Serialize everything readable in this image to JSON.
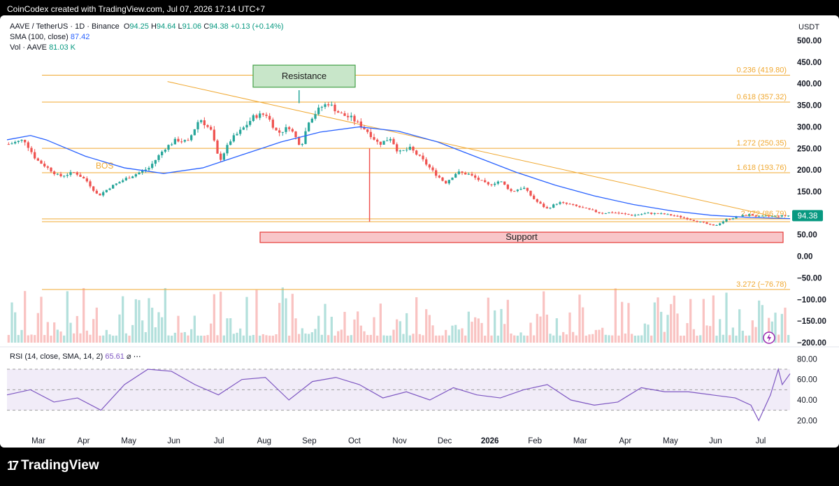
{
  "header": {
    "attribution": "CoinCodex created with TradingView.com, Jul 07, 2026 17:14 UTC+7"
  },
  "legend": {
    "symbol": "AAVE / TetherUS · 1D · Binance",
    "open": "94.25",
    "high": "94.64",
    "low": "91.06",
    "close": "94.38",
    "change": "+0.13 (+0.14%)",
    "sma_label": "SMA (100, close)",
    "sma_value": "87.42",
    "vol_label": "Vol · AAVE",
    "vol_value": "81.03 K",
    "rsi_label": "RSI (14, close, SMA, 14, 2)",
    "rsi_value": "65.61"
  },
  "footer": {
    "brand": "TradingView"
  },
  "colors": {
    "up": "#26a69a",
    "down": "#ef5350",
    "sma": "#2962ff",
    "level": "#f0a830",
    "rsi": "#7e57c2",
    "support_fill": "#f8c6c9",
    "support_stroke": "#e53935",
    "resistance_fill": "#c8e6c9",
    "resistance_stroke": "#43a047"
  },
  "chart_data": {
    "type": "candlestick",
    "currency": "USDT",
    "price_axis": {
      "ticks": [
        "500.00",
        "450.00",
        "400.00",
        "350.00",
        "300.00",
        "250.00",
        "200.00",
        "150.00",
        "100.00",
        "50.00",
        "0.00",
        "−50.00",
        "−100.00",
        "−150.00",
        "−200.00"
      ],
      "range": [
        -200,
        500
      ]
    },
    "rsi_axis": {
      "ticks": [
        "80.00",
        "60.00",
        "40.00",
        "20.00"
      ],
      "range": [
        10,
        85
      ],
      "bands": [
        30,
        50,
        70
      ]
    },
    "time_axis": {
      "ticks": [
        "Mar",
        "Apr",
        "May",
        "Jun",
        "Jul",
        "Aug",
        "Sep",
        "Oct",
        "Nov",
        "Dec",
        "2026",
        "Feb",
        "Mar",
        "Apr",
        "May",
        "Jun",
        "Jul"
      ]
    },
    "last_price": "94.38",
    "levels": [
      {
        "label": "0.236 (419.80)",
        "value": 419.8
      },
      {
        "label": "0.618 (357.32)",
        "value": 357.32
      },
      {
        "label": "1.272 (250.35)",
        "value": 250.35
      },
      {
        "label": "1.618 (193.76)",
        "value": 193.76
      },
      {
        "label": "2.272 (86.79)",
        "value": 86.79
      },
      {
        "label": "3.272 (−76.78)",
        "value": -76.78
      }
    ],
    "annotations": {
      "resistance": "Resistance",
      "support": "Support",
      "bos": "BOS"
    },
    "support_zone": [
      32,
      56
    ],
    "resistance_zone": [
      392,
      443
    ],
    "trendline": [
      [
        0.205,
        405
      ],
      [
        0.99,
        88
      ]
    ],
    "price_path": [
      [
        0.0,
        260
      ],
      [
        0.02,
        270
      ],
      [
        0.035,
        225
      ],
      [
        0.05,
        205
      ],
      [
        0.065,
        185
      ],
      [
        0.085,
        195
      ],
      [
        0.1,
        175
      ],
      [
        0.115,
        140
      ],
      [
        0.13,
        160
      ],
      [
        0.15,
        180
      ],
      [
        0.165,
        192
      ],
      [
        0.18,
        205
      ],
      [
        0.2,
        250
      ],
      [
        0.215,
        270
      ],
      [
        0.23,
        265
      ],
      [
        0.245,
        320
      ],
      [
        0.26,
        290
      ],
      [
        0.27,
        220
      ],
      [
        0.285,
        270
      ],
      [
        0.3,
        295
      ],
      [
        0.315,
        325
      ],
      [
        0.33,
        330
      ],
      [
        0.345,
        285
      ],
      [
        0.36,
        300
      ],
      [
        0.375,
        255
      ],
      [
        0.385,
        315
      ],
      [
        0.4,
        345
      ],
      [
        0.41,
        355
      ],
      [
        0.425,
        330
      ],
      [
        0.44,
        320
      ],
      [
        0.46,
        290
      ],
      [
        0.475,
        260
      ],
      [
        0.49,
        275
      ],
      [
        0.5,
        240
      ],
      [
        0.515,
        250
      ],
      [
        0.53,
        225
      ],
      [
        0.545,
        195
      ],
      [
        0.56,
        170
      ],
      [
        0.575,
        195
      ],
      [
        0.59,
        190
      ],
      [
        0.6,
        180
      ],
      [
        0.615,
        165
      ],
      [
        0.63,
        175
      ],
      [
        0.645,
        150
      ],
      [
        0.66,
        160
      ],
      [
        0.675,
        130
      ],
      [
        0.69,
        110
      ],
      [
        0.705,
        125
      ],
      [
        0.72,
        120
      ],
      [
        0.74,
        110
      ],
      [
        0.76,
        100
      ],
      [
        0.775,
        102
      ],
      [
        0.8,
        95
      ],
      [
        0.82,
        100
      ],
      [
        0.84,
        98
      ],
      [
        0.86,
        92
      ],
      [
        0.875,
        85
      ],
      [
        0.89,
        78
      ],
      [
        0.905,
        70
      ],
      [
        0.92,
        85
      ],
      [
        0.935,
        92
      ],
      [
        0.95,
        97
      ],
      [
        0.96,
        92
      ],
      [
        1.0,
        94.38
      ]
    ],
    "sma_path": [
      [
        0.0,
        270
      ],
      [
        0.03,
        280
      ],
      [
        0.05,
        270
      ],
      [
        0.1,
        232
      ],
      [
        0.15,
        205
      ],
      [
        0.2,
        192
      ],
      [
        0.25,
        205
      ],
      [
        0.3,
        235
      ],
      [
        0.35,
        265
      ],
      [
        0.4,
        288
      ],
      [
        0.45,
        300
      ],
      [
        0.5,
        290
      ],
      [
        0.55,
        265
      ],
      [
        0.6,
        230
      ],
      [
        0.65,
        195
      ],
      [
        0.7,
        165
      ],
      [
        0.75,
        140
      ],
      [
        0.8,
        120
      ],
      [
        0.85,
        105
      ],
      [
        0.9,
        95
      ],
      [
        0.95,
        90
      ],
      [
        1.0,
        87.42
      ]
    ],
    "rsi_path": [
      [
        0.0,
        45
      ],
      [
        0.03,
        50
      ],
      [
        0.06,
        38
      ],
      [
        0.09,
        42
      ],
      [
        0.12,
        30
      ],
      [
        0.15,
        55
      ],
      [
        0.18,
        70
      ],
      [
        0.21,
        68
      ],
      [
        0.24,
        55
      ],
      [
        0.27,
        45
      ],
      [
        0.3,
        60
      ],
      [
        0.33,
        62
      ],
      [
        0.36,
        40
      ],
      [
        0.39,
        58
      ],
      [
        0.42,
        62
      ],
      [
        0.45,
        55
      ],
      [
        0.48,
        42
      ],
      [
        0.51,
        48
      ],
      [
        0.54,
        40
      ],
      [
        0.57,
        52
      ],
      [
        0.6,
        45
      ],
      [
        0.63,
        42
      ],
      [
        0.66,
        50
      ],
      [
        0.69,
        55
      ],
      [
        0.72,
        40
      ],
      [
        0.75,
        35
      ],
      [
        0.78,
        38
      ],
      [
        0.81,
        52
      ],
      [
        0.84,
        48
      ],
      [
        0.87,
        48
      ],
      [
        0.9,
        45
      ],
      [
        0.93,
        42
      ],
      [
        0.95,
        35
      ],
      [
        0.96,
        20
      ],
      [
        0.975,
        45
      ],
      [
        0.985,
        70
      ],
      [
        0.99,
        55
      ],
      [
        1.0,
        65.61
      ]
    ]
  }
}
